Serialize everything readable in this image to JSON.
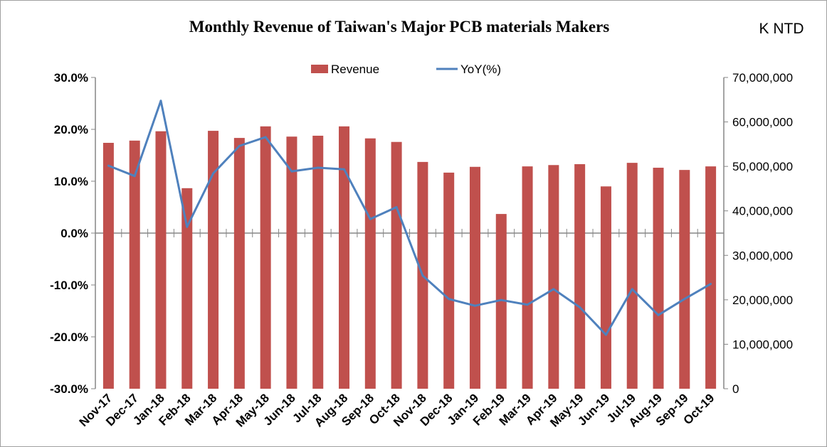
{
  "chart_data": {
    "type": "bar+line",
    "title": "Monthly Revenue of Taiwan's Major PCB materials Makers",
    "unit_label": "K NTD",
    "categories": [
      "Nov-17",
      "Dec-17",
      "Jan-18",
      "Feb-18",
      "Mar-18",
      "Apr-18",
      "May-18",
      "Jun-18",
      "Jul-18",
      "Aug-18",
      "Sep-18",
      "Oct-18",
      "Nov-18",
      "Dec-18",
      "Jan-19",
      "Feb-19",
      "Mar-19",
      "Apr-19",
      "May-19",
      "Jun-19",
      "Jul-19",
      "Aug-19",
      "Sep-19",
      "Oct-19"
    ],
    "series": [
      {
        "name": "Revenue",
        "type": "bar",
        "axis": "right",
        "color": "#c0504d",
        "values": [
          55300000,
          55800000,
          57900000,
          45100000,
          58000000,
          56400000,
          59000000,
          56700000,
          56900000,
          59000000,
          56300000,
          55500000,
          51000000,
          48600000,
          49900000,
          39300000,
          50000000,
          50300000,
          50500000,
          45500000,
          50800000,
          49700000,
          49200000,
          50000000
        ]
      },
      {
        "name": "YoY(%)",
        "type": "line",
        "axis": "left",
        "color": "#4f81bd",
        "values": [
          13.0,
          11.0,
          25.5,
          1.2,
          11.5,
          16.8,
          18.5,
          11.9,
          12.6,
          12.3,
          2.7,
          5.0,
          -8.2,
          -12.7,
          -14.0,
          -12.9,
          -13.8,
          -10.8,
          -14.3,
          -19.6,
          -10.8,
          -15.8,
          -12.7,
          -9.8
        ]
      }
    ],
    "left_axis": {
      "ylim": [
        -30,
        30
      ],
      "ticks": [
        "-30.0%",
        "-20.0%",
        "-10.0%",
        "0.0%",
        "10.0%",
        "20.0%",
        "30.0%"
      ]
    },
    "right_axis": {
      "ylim": [
        0,
        70000000
      ],
      "ticks": [
        "0",
        "10,000,000",
        "20,000,000",
        "30,000,000",
        "40,000,000",
        "50,000,000",
        "60,000,000",
        "70,000,000"
      ]
    },
    "grid": false,
    "legend": "top-center"
  }
}
